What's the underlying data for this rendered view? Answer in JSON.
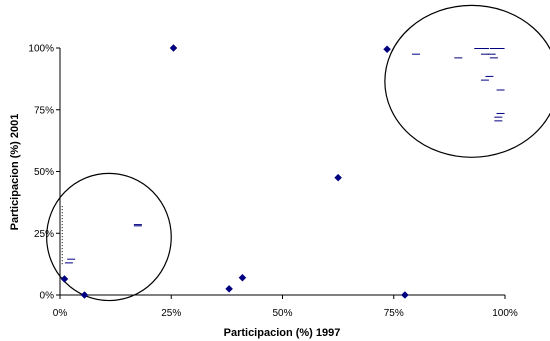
{
  "chart_data": {
    "type": "scatter",
    "title": "",
    "xlabel": "Participacion (%) 1997",
    "ylabel": "Participacion (%) 2001",
    "xlim": [
      0,
      1
    ],
    "ylim": [
      0,
      1
    ],
    "x_ticks": [
      "0%",
      "25%",
      "50%",
      "75%",
      "100%"
    ],
    "y_ticks": [
      "0%",
      "25%",
      "50%",
      "75%",
      "100%"
    ],
    "grid": false,
    "marker_color": "#000080",
    "points": [
      {
        "x": 0.255,
        "y": 1.0
      },
      {
        "x": 0.735,
        "y": 0.995
      },
      {
        "x": 0.625,
        "y": 0.475
      },
      {
        "x": 0.41,
        "y": 0.07
      },
      {
        "x": 0.38,
        "y": 0.025
      },
      {
        "x": 0.775,
        "y": 0.0
      },
      {
        "x": 0.055,
        "y": 0.0
      },
      {
        "x": 0.01,
        "y": 0.065
      }
    ],
    "dashes": [
      {
        "x": 0.175,
        "y": 0.285
      },
      {
        "x": 0.175,
        "y": 0.28
      },
      {
        "x": 0.025,
        "y": 0.145
      },
      {
        "x": 0.02,
        "y": 0.13
      },
      {
        "x": 0.8,
        "y": 0.975
      },
      {
        "x": 0.895,
        "y": 0.96
      },
      {
        "x": 0.94,
        "y": 0.998
      },
      {
        "x": 0.955,
        "y": 0.998
      },
      {
        "x": 0.975,
        "y": 0.998
      },
      {
        "x": 0.99,
        "y": 0.998
      },
      {
        "x": 0.955,
        "y": 0.975
      },
      {
        "x": 0.97,
        "y": 0.975
      },
      {
        "x": 0.975,
        "y": 0.96
      },
      {
        "x": 0.965,
        "y": 0.885
      },
      {
        "x": 0.955,
        "y": 0.87
      },
      {
        "x": 0.99,
        "y": 0.83
      },
      {
        "x": 0.99,
        "y": 0.735
      },
      {
        "x": 0.985,
        "y": 0.72
      },
      {
        "x": 0.985,
        "y": 0.705
      }
    ],
    "circles": [
      {
        "cx": 0.11,
        "cy": 0.235,
        "rx": 0.14,
        "ry": 0.515
      },
      {
        "cx": 0.925,
        "cy": 0.865,
        "rx": 0.195,
        "ry": 0.615
      }
    ]
  }
}
